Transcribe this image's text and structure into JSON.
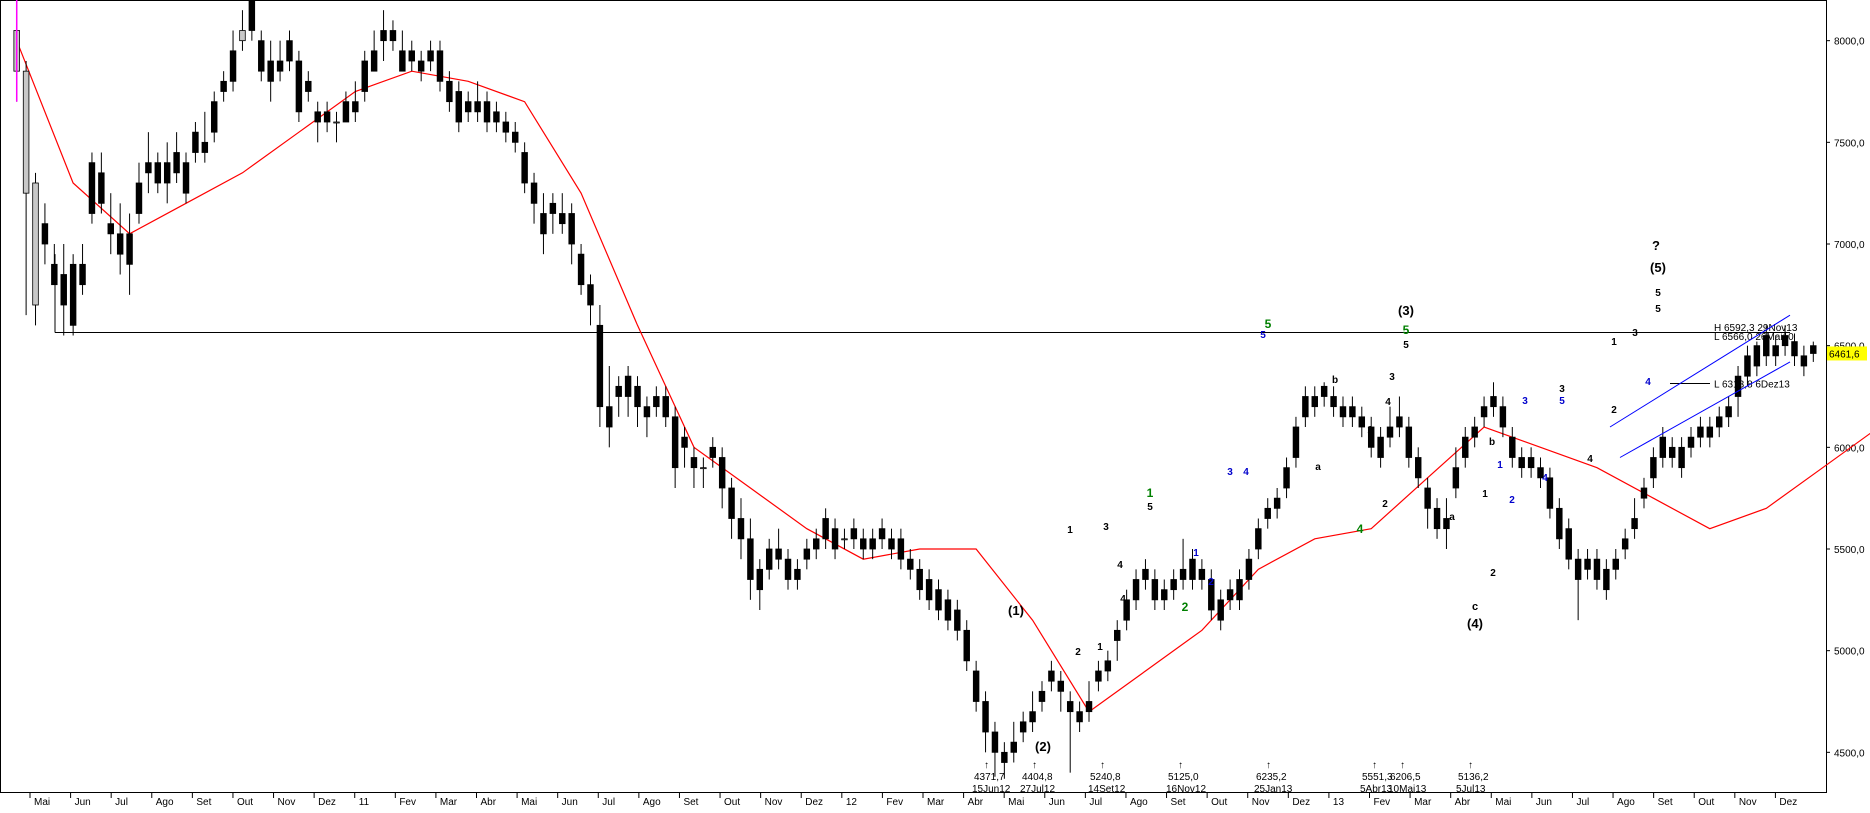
{
  "chart_data": {
    "type": "candlestick",
    "title": "",
    "ylim": [
      4300,
      8200
    ],
    "y_ticks": [
      {
        "value": 8000,
        "label": "8000,0"
      },
      {
        "value": 7500,
        "label": "7500,0"
      },
      {
        "value": 7000,
        "label": "7000,0"
      },
      {
        "value": 6500,
        "label": "6500,0"
      },
      {
        "value": 6000,
        "label": "6000,0"
      },
      {
        "value": 5500,
        "label": "5500,0"
      },
      {
        "value": 5000,
        "label": "5000,0"
      },
      {
        "value": 4500,
        "label": "4500,0"
      }
    ],
    "x_ticks": [
      "Mai",
      "Jun",
      "Jul",
      "Ago",
      "Set",
      "Out",
      "Nov",
      "Dez",
      "11",
      "Fev",
      "Mar",
      "Abr",
      "Mai",
      "Jun",
      "Jul",
      "Ago",
      "Set",
      "Out",
      "Nov",
      "Dez",
      "12",
      "Fev",
      "Mar",
      "Abr",
      "Mai",
      "Jun",
      "Jul",
      "Ago",
      "Set",
      "Out",
      "Nov",
      "Dez",
      "13",
      "Fev",
      "Mar",
      "Abr",
      "Mai",
      "Jun",
      "Jul",
      "Ago",
      "Set",
      "Out",
      "Nov",
      "Dez"
    ],
    "last_price": {
      "value": 6461.6,
      "label": "6461,6",
      "color": "#ffff00"
    },
    "colors": {
      "up": "#c8c8c8",
      "down": "#000000",
      "ma": "#ff0000",
      "channel": "#0000ff"
    },
    "candles": [
      [
        7850,
        8050,
        7700,
        8200
      ],
      [
        7250,
        7850,
        6650,
        7900
      ],
      [
        6700,
        7300,
        6600,
        7350
      ],
      [
        7100,
        7000,
        6900,
        7200
      ],
      [
        6900,
        6800,
        6800,
        7000
      ],
      [
        6850,
        6700,
        6550,
        7000
      ],
      [
        6900,
        6600,
        6550,
        6950
      ],
      [
        6900,
        6800,
        6750,
        7000
      ],
      [
        7400,
        7150,
        7100,
        7450
      ],
      [
        7350,
        7200,
        7150,
        7450
      ],
      [
        7100,
        7050,
        6950,
        7250
      ],
      [
        7050,
        6950,
        6850,
        7200
      ],
      [
        7050,
        6900,
        6750,
        7150
      ],
      [
        7300,
        7150,
        7100,
        7400
      ],
      [
        7400,
        7350,
        7250,
        7550
      ],
      [
        7400,
        7300,
        7250,
        7450
      ],
      [
        7400,
        7300,
        7200,
        7500
      ],
      [
        7450,
        7350,
        7300,
        7550
      ],
      [
        7400,
        7250,
        7200,
        7450
      ],
      [
        7550,
        7450,
        7400,
        7600
      ],
      [
        7500,
        7450,
        7400,
        7650
      ],
      [
        7700,
        7550,
        7500,
        7750
      ],
      [
        7800,
        7750,
        7700,
        7850
      ],
      [
        7950,
        7800,
        7750,
        8050
      ],
      [
        8000,
        8050,
        7950,
        8150
      ],
      [
        8200,
        8050,
        8000,
        8250
      ],
      [
        8000,
        7850,
        7800,
        8050
      ],
      [
        7900,
        7800,
        7700,
        8000
      ],
      [
        7900,
        7850,
        7800,
        8000
      ],
      [
        8000,
        7900,
        7850,
        8050
      ],
      [
        7900,
        7650,
        7600,
        7950
      ],
      [
        7800,
        7750,
        7700,
        7850
      ],
      [
        7650,
        7600,
        7500,
        7700
      ],
      [
        7650,
        7600,
        7550,
        7700
      ],
      [
        7600,
        7600,
        7500,
        7650
      ],
      [
        7700,
        7600,
        7600,
        7750
      ],
      [
        7700,
        7650,
        7600,
        7800
      ],
      [
        7900,
        7750,
        7700,
        7950
      ],
      [
        7950,
        7850,
        7850,
        8050
      ],
      [
        8050,
        8000,
        7900,
        8150
      ],
      [
        8050,
        8000,
        7950,
        8100
      ],
      [
        7950,
        7850,
        7850,
        8050
      ],
      [
        7950,
        7900,
        7850,
        8000
      ],
      [
        7900,
        7850,
        7800,
        7950
      ],
      [
        7950,
        7900,
        7850,
        8000
      ],
      [
        7950,
        7800,
        7750,
        8000
      ],
      [
        7800,
        7700,
        7650,
        7850
      ],
      [
        7750,
        7600,
        7550,
        7800
      ],
      [
        7700,
        7650,
        7600,
        7750
      ],
      [
        7700,
        7650,
        7600,
        7800
      ],
      [
        7700,
        7600,
        7550,
        7750
      ],
      [
        7650,
        7600,
        7550,
        7700
      ],
      [
        7600,
        7550,
        7500,
        7650
      ],
      [
        7550,
        7500,
        7450,
        7600
      ],
      [
        7450,
        7300,
        7250,
        7500
      ],
      [
        7300,
        7200,
        7100,
        7350
      ],
      [
        7150,
        7050,
        6950,
        7250
      ],
      [
        7200,
        7150,
        7050,
        7250
      ],
      [
        7150,
        7100,
        7050,
        7250
      ],
      [
        7150,
        7000,
        6900,
        7200
      ],
      [
        6950,
        6800,
        6750,
        7000
      ],
      [
        6800,
        6700,
        6600,
        6850
      ],
      [
        6600,
        6200,
        6100,
        6700
      ],
      [
        6200,
        6100,
        6000,
        6400
      ],
      [
        6300,
        6250,
        6150,
        6350
      ],
      [
        6350,
        6250,
        6150,
        6400
      ],
      [
        6300,
        6200,
        6100,
        6350
      ],
      [
        6200,
        6150,
        6050,
        6250
      ],
      [
        6250,
        6200,
        6150,
        6300
      ],
      [
        6250,
        6150,
        6100,
        6300
      ],
      [
        6150,
        5900,
        5800,
        6200
      ],
      [
        6050,
        6000,
        5900,
        6100
      ],
      [
        5950,
        5900,
        5800,
        6000
      ],
      [
        5900,
        5900,
        5800,
        5950
      ],
      [
        6000,
        5950,
        5900,
        6050
      ],
      [
        5950,
        5800,
        5700,
        6000
      ],
      [
        5800,
        5650,
        5550,
        5850
      ],
      [
        5650,
        5550,
        5450,
        5750
      ],
      [
        5550,
        5350,
        5250,
        5650
      ],
      [
        5400,
        5300,
        5200,
        5450
      ],
      [
        5500,
        5400,
        5350,
        5550
      ],
      [
        5500,
        5450,
        5400,
        5600
      ],
      [
        5450,
        5350,
        5300,
        5500
      ],
      [
        5400,
        5350,
        5300,
        5450
      ],
      [
        5500,
        5450,
        5400,
        5550
      ],
      [
        5550,
        5500,
        5450,
        5600
      ],
      [
        5650,
        5550,
        5500,
        5700
      ],
      [
        5600,
        5500,
        5450,
        5650
      ],
      [
        5550,
        5550,
        5500,
        5600
      ],
      [
        5600,
        5550,
        5500,
        5650
      ],
      [
        5550,
        5500,
        5450,
        5600
      ],
      [
        5550,
        5500,
        5450,
        5600
      ],
      [
        5600,
        5550,
        5500,
        5650
      ],
      [
        5550,
        5500,
        5450,
        5600
      ],
      [
        5550,
        5450,
        5400,
        5600
      ],
      [
        5450,
        5400,
        5350,
        5500
      ],
      [
        5400,
        5300,
        5250,
        5450
      ],
      [
        5350,
        5250,
        5200,
        5400
      ],
      [
        5300,
        5200,
        5150,
        5350
      ],
      [
        5250,
        5150,
        5100,
        5300
      ],
      [
        5200,
        5100,
        5050,
        5250
      ],
      [
        5100,
        4950,
        4900,
        5150
      ],
      [
        4900,
        4750,
        4700,
        4950
      ],
      [
        4750,
        4600,
        4500,
        4800
      ],
      [
        4600,
        4500,
        4380,
        4650
      ],
      [
        4500,
        4450,
        4370,
        4550
      ],
      [
        4550,
        4500,
        4450,
        4650
      ],
      [
        4650,
        4600,
        4550,
        4700
      ],
      [
        4700,
        4650,
        4600,
        4800
      ],
      [
        4800,
        4750,
        4700,
        4850
      ],
      [
        4900,
        4850,
        4800,
        4950
      ],
      [
        4850,
        4800,
        4700,
        4900
      ],
      [
        4750,
        4700,
        4400,
        4800
      ],
      [
        4700,
        4650,
        4600,
        4750
      ],
      [
        4750,
        4700,
        4650,
        4850
      ],
      [
        4900,
        4850,
        4800,
        4950
      ],
      [
        4950,
        4900,
        4850,
        5000
      ],
      [
        5100,
        5050,
        4950,
        5150
      ],
      [
        5250,
        5150,
        5100,
        5300
      ],
      [
        5350,
        5250,
        5200,
        5400
      ],
      [
        5400,
        5350,
        5300,
        5450
      ],
      [
        5350,
        5250,
        5200,
        5400
      ],
      [
        5300,
        5250,
        5200,
        5350
      ],
      [
        5350,
        5300,
        5250,
        5400
      ],
      [
        5400,
        5350,
        5300,
        5550
      ],
      [
        5450,
        5350,
        5300,
        5500
      ],
      [
        5400,
        5350,
        5300,
        5450
      ],
      [
        5350,
        5200,
        5150,
        5400
      ],
      [
        5250,
        5150,
        5100,
        5300
      ],
      [
        5300,
        5250,
        5200,
        5350
      ],
      [
        5350,
        5250,
        5200,
        5400
      ],
      [
        5450,
        5350,
        5300,
        5500
      ],
      [
        5600,
        5500,
        5450,
        5650
      ],
      [
        5700,
        5650,
        5600,
        5750
      ],
      [
        5750,
        5700,
        5650,
        5800
      ],
      [
        5900,
        5800,
        5750,
        5950
      ],
      [
        6100,
        5950,
        5900,
        6150
      ],
      [
        6250,
        6150,
        6100,
        6300
      ],
      [
        6250,
        6200,
        6150,
        6300
      ],
      [
        6300,
        6250,
        6200,
        6320
      ],
      [
        6250,
        6200,
        6150,
        6300
      ],
      [
        6200,
        6150,
        6100,
        6250
      ],
      [
        6200,
        6150,
        6100,
        6250
      ],
      [
        6150,
        6100,
        6050,
        6200
      ],
      [
        6100,
        6000,
        5950,
        6150
      ],
      [
        6050,
        5950,
        5900,
        6100
      ],
      [
        6100,
        6050,
        6000,
        6200
      ],
      [
        6150,
        6100,
        6050,
        6250
      ],
      [
        6100,
        5950,
        5900,
        6150
      ],
      [
        5950,
        5850,
        5800,
        6000
      ],
      [
        5800,
        5700,
        5600,
        5850
      ],
      [
        5700,
        5600,
        5550,
        5750
      ],
      [
        5650,
        5600,
        5500,
        5750
      ],
      [
        5900,
        5800,
        5750,
        6000
      ],
      [
        6050,
        5950,
        5900,
        6100
      ],
      [
        6100,
        6050,
        6000,
        6150
      ],
      [
        6200,
        6150,
        6100,
        6250
      ],
      [
        6250,
        6200,
        6150,
        6320
      ],
      [
        6200,
        6100,
        6050,
        6250
      ],
      [
        6050,
        5950,
        5900,
        6100
      ],
      [
        5950,
        5900,
        5850,
        6000
      ],
      [
        5950,
        5900,
        5850,
        6000
      ],
      [
        5900,
        5850,
        5800,
        5950
      ],
      [
        5850,
        5700,
        5650,
        5900
      ],
      [
        5700,
        5550,
        5500,
        5750
      ],
      [
        5600,
        5450,
        5400,
        5650
      ],
      [
        5450,
        5350,
        5150,
        5500
      ],
      [
        5450,
        5400,
        5350,
        5500
      ],
      [
        5450,
        5350,
        5300,
        5500
      ],
      [
        5400,
        5300,
        5250,
        5450
      ],
      [
        5450,
        5400,
        5350,
        5500
      ],
      [
        5550,
        5500,
        5450,
        5600
      ],
      [
        5650,
        5600,
        5550,
        5750
      ],
      [
        5800,
        5750,
        5700,
        5850
      ],
      [
        5950,
        5850,
        5800,
        6000
      ],
      [
        6050,
        5950,
        5900,
        6100
      ],
      [
        6000,
        5950,
        5900,
        6050
      ],
      [
        6000,
        5900,
        5850,
        6050
      ],
      [
        6050,
        6000,
        5950,
        6100
      ],
      [
        6100,
        6050,
        6000,
        6150
      ],
      [
        6100,
        6050,
        6000,
        6150
      ],
      [
        6150,
        6100,
        6050,
        6200
      ],
      [
        6200,
        6150,
        6100,
        6250
      ],
      [
        6350,
        6250,
        6150,
        6400
      ],
      [
        6450,
        6350,
        6300,
        6500
      ],
      [
        6500,
        6400,
        6350,
        6520
      ],
      [
        6550,
        6450,
        6400,
        6600
      ],
      [
        6500,
        6450,
        6400,
        6550
      ],
      [
        6550,
        6500,
        6450,
        6600
      ],
      [
        6520,
        6450,
        6400,
        6560
      ],
      [
        6450,
        6400,
        6350,
        6500
      ],
      [
        6500,
        6461.6,
        6420,
        6520
      ]
    ],
    "ma": [
      [
        0,
        8000
      ],
      [
        6,
        7300
      ],
      [
        12,
        7050
      ],
      [
        18,
        7200
      ],
      [
        24,
        7350
      ],
      [
        30,
        7550
      ],
      [
        36,
        7750
      ],
      [
        42,
        7850
      ],
      [
        48,
        7800
      ],
      [
        54,
        7700
      ],
      [
        60,
        7250
      ],
      [
        66,
        6600
      ],
      [
        72,
        6000
      ],
      [
        78,
        5800
      ],
      [
        84,
        5600
      ],
      [
        90,
        5450
      ],
      [
        96,
        5500
      ],
      [
        102,
        5500
      ],
      [
        108,
        5150
      ],
      [
        114,
        4700
      ],
      [
        120,
        4900
      ],
      [
        126,
        5100
      ],
      [
        132,
        5400
      ],
      [
        138,
        5550
      ],
      [
        144,
        5600
      ],
      [
        150,
        5850
      ],
      [
        156,
        6100
      ],
      [
        162,
        6000
      ],
      [
        168,
        5900
      ],
      [
        174,
        5750
      ],
      [
        180,
        5600
      ],
      [
        186,
        5700
      ],
      [
        192,
        5900
      ],
      [
        198,
        6100
      ],
      [
        204,
        6300
      ]
    ],
    "horizontal_lines": [
      {
        "value": 6565,
        "label": ""
      },
      {
        "value": 6313.8,
        "label": "L 6313,8 6Dez13"
      }
    ],
    "price_labels_right": [
      {
        "value": 6592.3,
        "label": "H 6592,3 29Nov13"
      },
      {
        "value": 6566,
        "label": "L 6566,0 26Mai10"
      }
    ],
    "bottom_annotations": [
      {
        "price": "4371,7",
        "date": "15Jun12"
      },
      {
        "price": "4404,8",
        "date": "27Jul12"
      },
      {
        "price": "5240,8",
        "date": "14Set12"
      },
      {
        "price": "5125,0",
        "date": "16Nov12"
      },
      {
        "price": "6235,2",
        "date": "25Jan13"
      },
      {
        "price": "5551,3",
        "date": "5Abr13"
      },
      {
        "price": "6206,5",
        "date": "10Mai13"
      },
      {
        "price": "5136,2",
        "date": "5Jul13"
      }
    ],
    "wave_labels": [
      "(1)",
      "(2)",
      "(3)",
      "(4)",
      "(5)",
      "?",
      "1",
      "2",
      "3",
      "4",
      "5",
      "a",
      "b",
      "c"
    ]
  }
}
